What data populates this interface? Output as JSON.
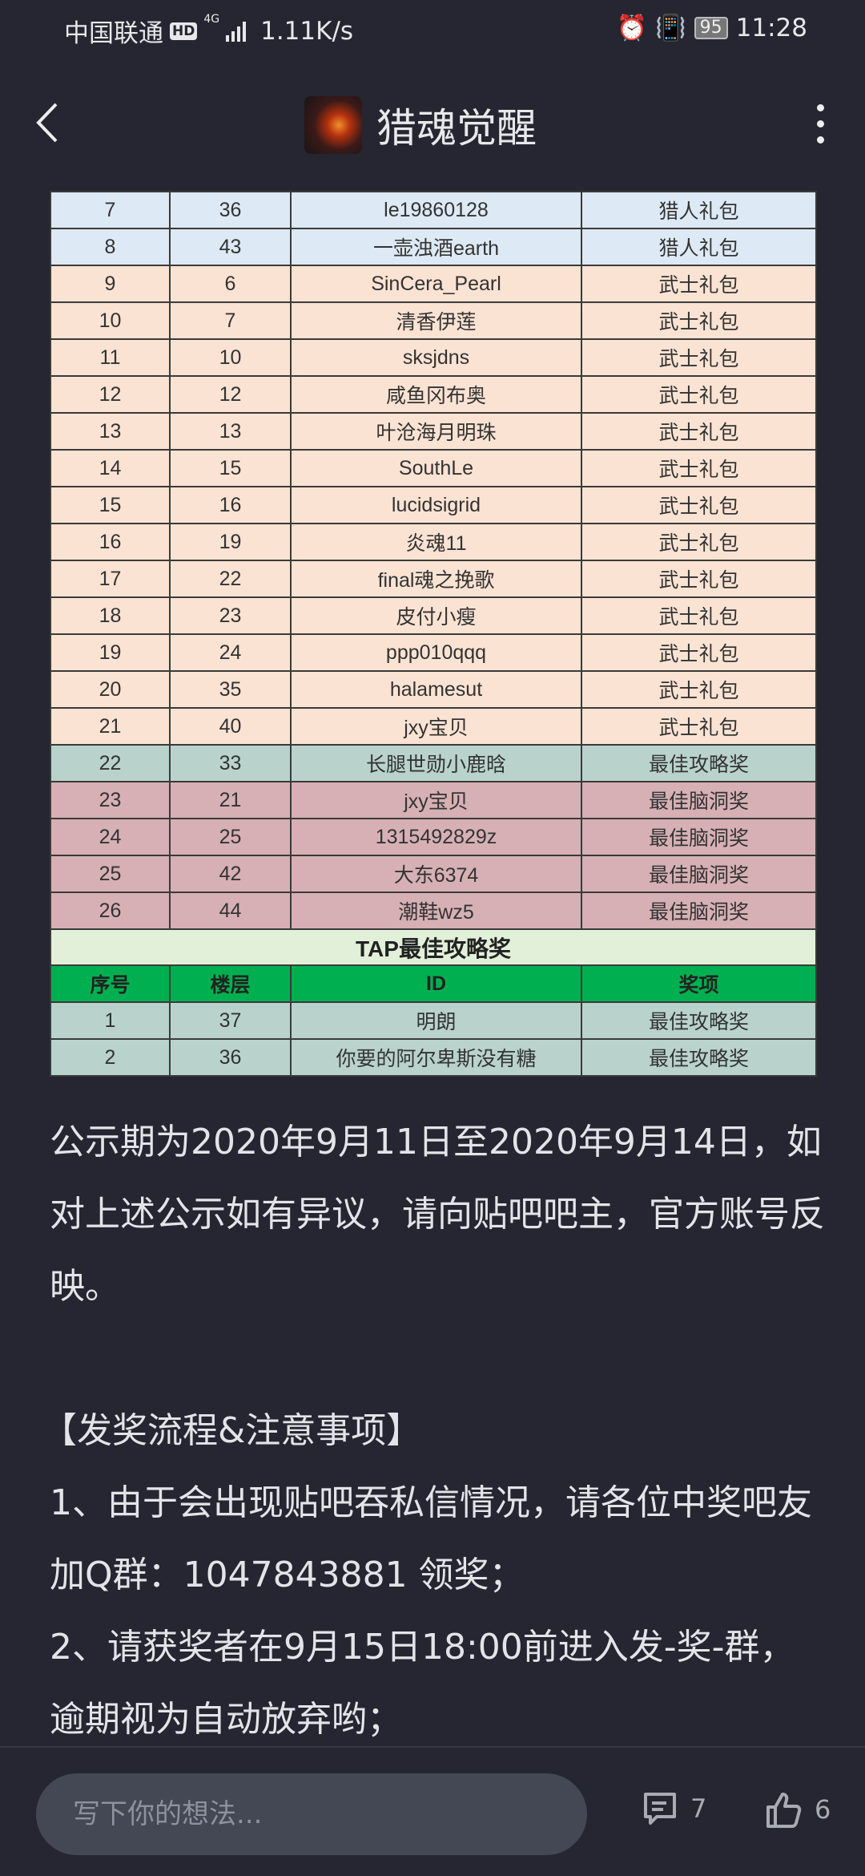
{
  "status_bar": {
    "carrier": "中国联通",
    "hd": "HD",
    "network": "4G",
    "speed": "1.11K/s",
    "battery": "95",
    "time": "11:28"
  },
  "header": {
    "title": "猎魂觉醒",
    "back_icon": "chevron-left-icon",
    "menu_icon": "more-vertical-icon"
  },
  "table": {
    "rows": [
      {
        "no": "7",
        "floor": "36",
        "id": "le19860128",
        "prize": "猎人礼包",
        "type": "hunter"
      },
      {
        "no": "8",
        "floor": "43",
        "id": "一壶浊酒earth",
        "prize": "猎人礼包",
        "type": "hunter"
      },
      {
        "no": "9",
        "floor": "6",
        "id": "SinCera_Pearl",
        "prize": "武士礼包",
        "type": "warrior"
      },
      {
        "no": "10",
        "floor": "7",
        "id": "清香伊莲",
        "prize": "武士礼包",
        "type": "warrior"
      },
      {
        "no": "11",
        "floor": "10",
        "id": "sksjdns",
        "prize": "武士礼包",
        "type": "warrior"
      },
      {
        "no": "12",
        "floor": "12",
        "id": "咸鱼冈布奥",
        "prize": "武士礼包",
        "type": "warrior"
      },
      {
        "no": "13",
        "floor": "13",
        "id": "叶沧海月明珠",
        "prize": "武士礼包",
        "type": "warrior"
      },
      {
        "no": "14",
        "floor": "15",
        "id": "SouthLe",
        "prize": "武士礼包",
        "type": "warrior"
      },
      {
        "no": "15",
        "floor": "16",
        "id": "lucidsigrid",
        "prize": "武士礼包",
        "type": "warrior"
      },
      {
        "no": "16",
        "floor": "19",
        "id": "炎魂11",
        "prize": "武士礼包",
        "type": "warrior"
      },
      {
        "no": "17",
        "floor": "22",
        "id": "final魂之挽歌",
        "prize": "武士礼包",
        "type": "warrior"
      },
      {
        "no": "18",
        "floor": "23",
        "id": "皮付小瘦",
        "prize": "武士礼包",
        "type": "warrior"
      },
      {
        "no": "19",
        "floor": "24",
        "id": "ppp010qqq",
        "prize": "武士礼包",
        "type": "warrior"
      },
      {
        "no": "20",
        "floor": "35",
        "id": "halamesut",
        "prize": "武士礼包",
        "type": "warrior"
      },
      {
        "no": "21",
        "floor": "40",
        "id": "jxy宝贝",
        "prize": "武士礼包",
        "type": "warrior"
      },
      {
        "no": "22",
        "floor": "33",
        "id": "长腿世勋小鹿晗",
        "prize": "最佳攻略奖",
        "type": "guide"
      },
      {
        "no": "23",
        "floor": "21",
        "id": "jxy宝贝",
        "prize": "最佳脑洞奖",
        "type": "brain"
      },
      {
        "no": "24",
        "floor": "25",
        "id": "1315492829z",
        "prize": "最佳脑洞奖",
        "type": "brain"
      },
      {
        "no": "25",
        "floor": "42",
        "id": "大东6374",
        "prize": "最佳脑洞奖",
        "type": "brain"
      },
      {
        "no": "26",
        "floor": "44",
        "id": "潮鞋wz5",
        "prize": "最佳脑洞奖",
        "type": "brain"
      }
    ],
    "tap_title": "TAP最佳攻略奖",
    "headers": [
      "序号",
      "楼层",
      "ID",
      "奖项"
    ],
    "tap_rows": [
      {
        "no": "1",
        "floor": "37",
        "id": "明朗",
        "prize": "最佳攻略奖",
        "type": "guide"
      },
      {
        "no": "2",
        "floor": "36",
        "id": "你要的阿尔卑斯没有糖",
        "prize": "最佳攻略奖",
        "type": "guide"
      }
    ]
  },
  "body": {
    "p1": "公示期为2020年9月11日至2020年9月14日，如对上述公示如有异议，请向贴吧吧主，官方账号反映。",
    "section": "【发奖流程&注意事项】",
    "item1": "1、由于会出现贴吧吞私信情况，请各位中奖吧友加Q群：1047843881 领奖；",
    "item2": "2、请获奖者在9月15日18:00前进入发-奖-群，逾期视为自动放弃哟；"
  },
  "bottom_bar": {
    "placeholder": "写下你的想法...",
    "comment_count": "7",
    "like_count": "6"
  }
}
